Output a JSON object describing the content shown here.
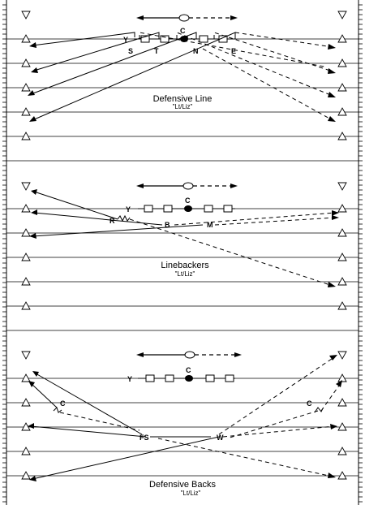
{
  "panels": [
    {
      "title": "Defensive Line",
      "subtitle": "\"Lt/Liz\"",
      "offense_center": "C",
      "offense_y": "Y",
      "defenders": [
        "S",
        "T",
        "N",
        "E"
      ]
    },
    {
      "title": "Linebackers",
      "subtitle": "\"Lt/Liz\"",
      "offense_center": "C",
      "offense_y": "Y",
      "defenders": [
        "R",
        "B",
        "M"
      ]
    },
    {
      "title": "Defensive Backs",
      "subtitle": "\"Lt/Liz\"",
      "offense_center": "C",
      "offense_y": "Y",
      "defenders": [
        "C",
        "FS",
        "W",
        "C"
      ]
    }
  ],
  "colors": {
    "ink": "#000000",
    "background": "#ffffff"
  }
}
